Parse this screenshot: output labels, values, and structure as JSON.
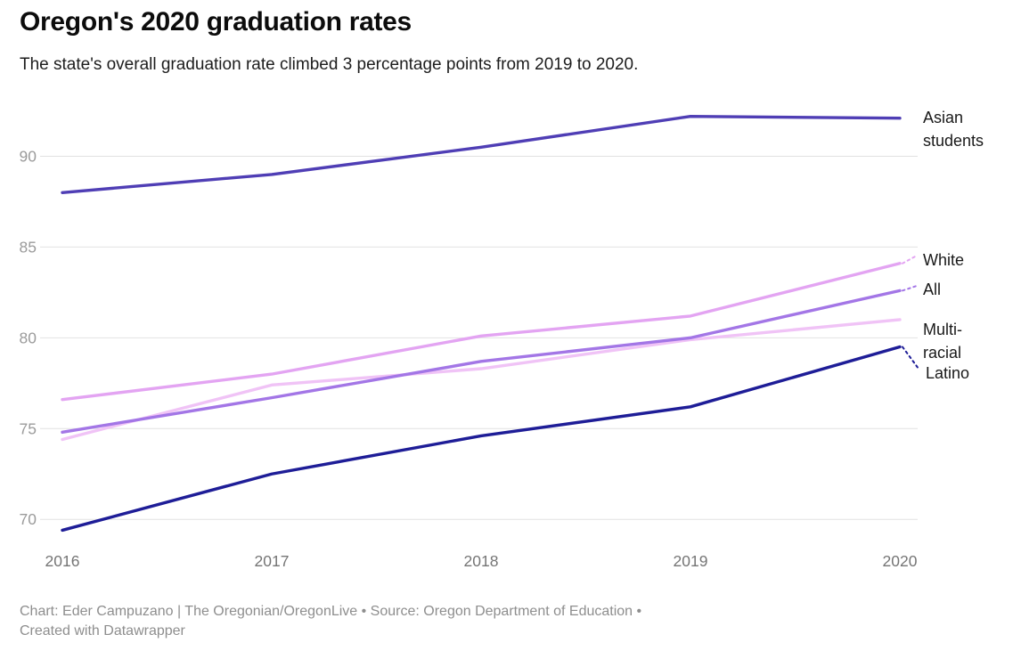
{
  "header": {
    "title": "Oregon's 2020 graduation rates",
    "subtitle": "The state's overall graduation rate climbed 3 percentage points from 2019 to 2020."
  },
  "footer": {
    "line1": "Chart: Eder Campuzano | The Oregonian/OregonLive • Source: Oregon Department of Education •",
    "line2": "Created with Datawrapper"
  },
  "chart_data": {
    "type": "line",
    "title": "Oregon's 2020 graduation rates",
    "xlabel": "",
    "ylabel": "",
    "unit": "percent",
    "x": [
      2016,
      2017,
      2018,
      2019,
      2020
    ],
    "yticks": [
      70,
      75,
      80,
      85,
      90
    ],
    "ylim": [
      69,
      92.6
    ],
    "grid": true,
    "legend_position": "right-edge-labels",
    "series": [
      {
        "name": "Asian students",
        "color": "#4f3eb5",
        "values": [
          88.0,
          89.0,
          90.5,
          92.2,
          92.1
        ]
      },
      {
        "name": "White",
        "color": "#e3a4f2",
        "values": [
          76.6,
          78.0,
          80.1,
          81.2,
          84.1
        ]
      },
      {
        "name": "All",
        "color": "#a376e6",
        "values": [
          74.8,
          76.7,
          78.7,
          80.0,
          82.6
        ]
      },
      {
        "name": "Multi-racial",
        "color": "#f0c3f6",
        "values": [
          74.4,
          77.4,
          78.3,
          79.9,
          81.0
        ]
      },
      {
        "name": "Latino",
        "color": "#1e1d97",
        "values": [
          69.4,
          72.5,
          74.6,
          76.2,
          79.5
        ]
      }
    ]
  }
}
